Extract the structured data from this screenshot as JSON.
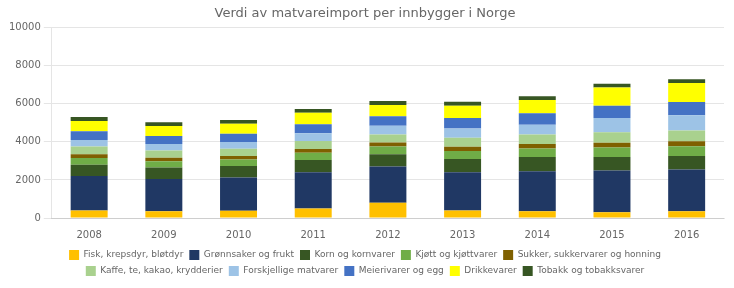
{
  "chart_data": {
    "type": "bar",
    "title": "Verdi av matvareimport per innbygger i Norge",
    "categories": [
      "2008",
      "2009",
      "2010",
      "2011",
      "2012",
      "2013",
      "2014",
      "2015",
      "2016"
    ],
    "series": [
      {
        "name": "Fisk, krepsdyr, bløtdyr",
        "color": "#ffc000",
        "values": [
          400,
          350,
          380,
          500,
          800,
          400,
          350,
          300,
          350
        ]
      },
      {
        "name": "Grønnsaker og frukt",
        "color": "#203864",
        "values": [
          1800,
          1700,
          1750,
          1900,
          1900,
          2000,
          2100,
          2200,
          2200
        ]
      },
      {
        "name": "Korn og kornvarer",
        "color": "#375623",
        "values": [
          600,
          600,
          600,
          650,
          650,
          700,
          750,
          700,
          700
        ]
      },
      {
        "name": "Kjøtt og kjøttvarer",
        "color": "#70ad47",
        "values": [
          350,
          330,
          340,
          380,
          400,
          420,
          450,
          500,
          520
        ]
      },
      {
        "name": "Sukker, sukkervarer og honning",
        "color": "#7f6000",
        "values": [
          200,
          180,
          190,
          200,
          210,
          220,
          230,
          250,
          260
        ]
      },
      {
        "name": "Kaffe, te, kakao, krydderier",
        "color": "#a9d18e",
        "values": [
          400,
          380,
          380,
          420,
          430,
          480,
          500,
          550,
          560
        ]
      },
      {
        "name": "Forskjellige matvarer",
        "color": "#9dc3e6",
        "values": [
          350,
          340,
          350,
          400,
          450,
          480,
          520,
          750,
          800
        ]
      },
      {
        "name": "Meierivarer og egg",
        "color": "#4472c4",
        "values": [
          450,
          430,
          430,
          480,
          500,
          550,
          600,
          650,
          700
        ]
      },
      {
        "name": "Drikkevarer",
        "color": "#ffff00",
        "values": [
          550,
          520,
          530,
          600,
          600,
          650,
          700,
          950,
          1000
        ]
      },
      {
        "name": "Tobakk og tobakksvarer",
        "color": "#375623",
        "values": [
          200,
          200,
          200,
          200,
          200,
          200,
          200,
          200,
          200
        ]
      }
    ],
    "stacked": true,
    "ylim": [
      0,
      10000
    ],
    "yticks": [
      0,
      2000,
      4000,
      6000,
      8000,
      10000
    ],
    "grid": true,
    "legend": "bottom"
  }
}
